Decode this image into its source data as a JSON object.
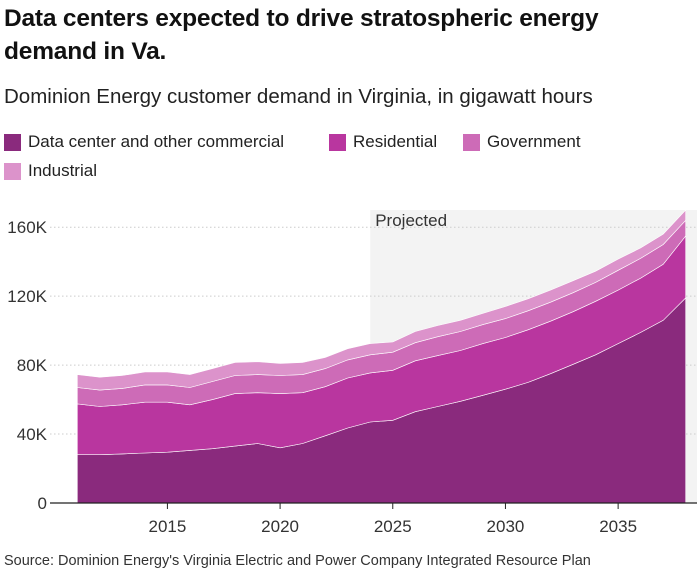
{
  "title": "Data centers expected to drive stratospheric energy demand in Va.",
  "subtitle": "Dominion Energy customer demand in Virginia, in gigawatt hours",
  "source": "Source: Dominion Energy's Virginia Electric and Power Company Integrated Resource Plan",
  "projected_label": "Projected",
  "colors": {
    "data_center": "#8a2a7d",
    "residential": "#b9369f",
    "government": "#cd6bb7",
    "industrial": "#dc93cb",
    "projected_band": "#f3f3f3"
  },
  "chart_data": {
    "type": "area",
    "stacked": true,
    "x": [
      2011,
      2012,
      2013,
      2014,
      2015,
      2016,
      2017,
      2018,
      2019,
      2020,
      2021,
      2022,
      2023,
      2024,
      2025,
      2026,
      2027,
      2028,
      2029,
      2030,
      2031,
      2032,
      2033,
      2034,
      2035,
      2036,
      2037,
      2038
    ],
    "series": [
      {
        "name": "Data center and other commercial",
        "values": [
          28000,
          28000,
          28500,
          29000,
          29500,
          30500,
          31500,
          33000,
          34500,
          32000,
          34500,
          39000,
          43500,
          47000,
          48000,
          53000,
          56000,
          59000,
          62500,
          66000,
          70000,
          75000,
          80500,
          86000,
          92500,
          99000,
          106000,
          119000
        ]
      },
      {
        "name": "Residential",
        "values": [
          29500,
          28000,
          28500,
          29500,
          29000,
          26500,
          28500,
          30500,
          29500,
          31500,
          29500,
          28500,
          29000,
          28500,
          29000,
          29500,
          29500,
          29500,
          30000,
          30000,
          30500,
          30500,
          30500,
          31000,
          31000,
          31500,
          32500,
          36000
        ]
      },
      {
        "name": "Government",
        "values": [
          9500,
          9500,
          9500,
          10000,
          10000,
          10000,
          10500,
          10500,
          10500,
          10500,
          10500,
          10500,
          10500,
          10500,
          10500,
          10500,
          11000,
          11000,
          11000,
          11000,
          11000,
          11000,
          11000,
          11000,
          11500,
          11500,
          11500,
          9000
        ]
      },
      {
        "name": "Industrial",
        "values": [
          7500,
          7500,
          7500,
          7500,
          7500,
          7500,
          7500,
          7500,
          7500,
          7000,
          7000,
          6500,
          6500,
          6500,
          6000,
          6500,
          6500,
          6500,
          6500,
          7000,
          7000,
          7000,
          7000,
          6500,
          6500,
          6000,
          6000,
          6000
        ]
      }
    ],
    "projected_start": 2024,
    "xticks": [
      2015,
      2020,
      2025,
      2030,
      2035
    ],
    "xtick_labels": [
      "2015",
      "2020",
      "2025",
      "2030",
      "2035"
    ],
    "yticks": [
      0,
      40000,
      80000,
      120000,
      160000
    ],
    "ytick_labels": [
      "0",
      "40K",
      "80K",
      "120K",
      "160K"
    ],
    "xlim": [
      2010.5,
      2038.5
    ],
    "ylim": [
      0,
      170000
    ],
    "grid": "horizontal",
    "legend": "top"
  }
}
